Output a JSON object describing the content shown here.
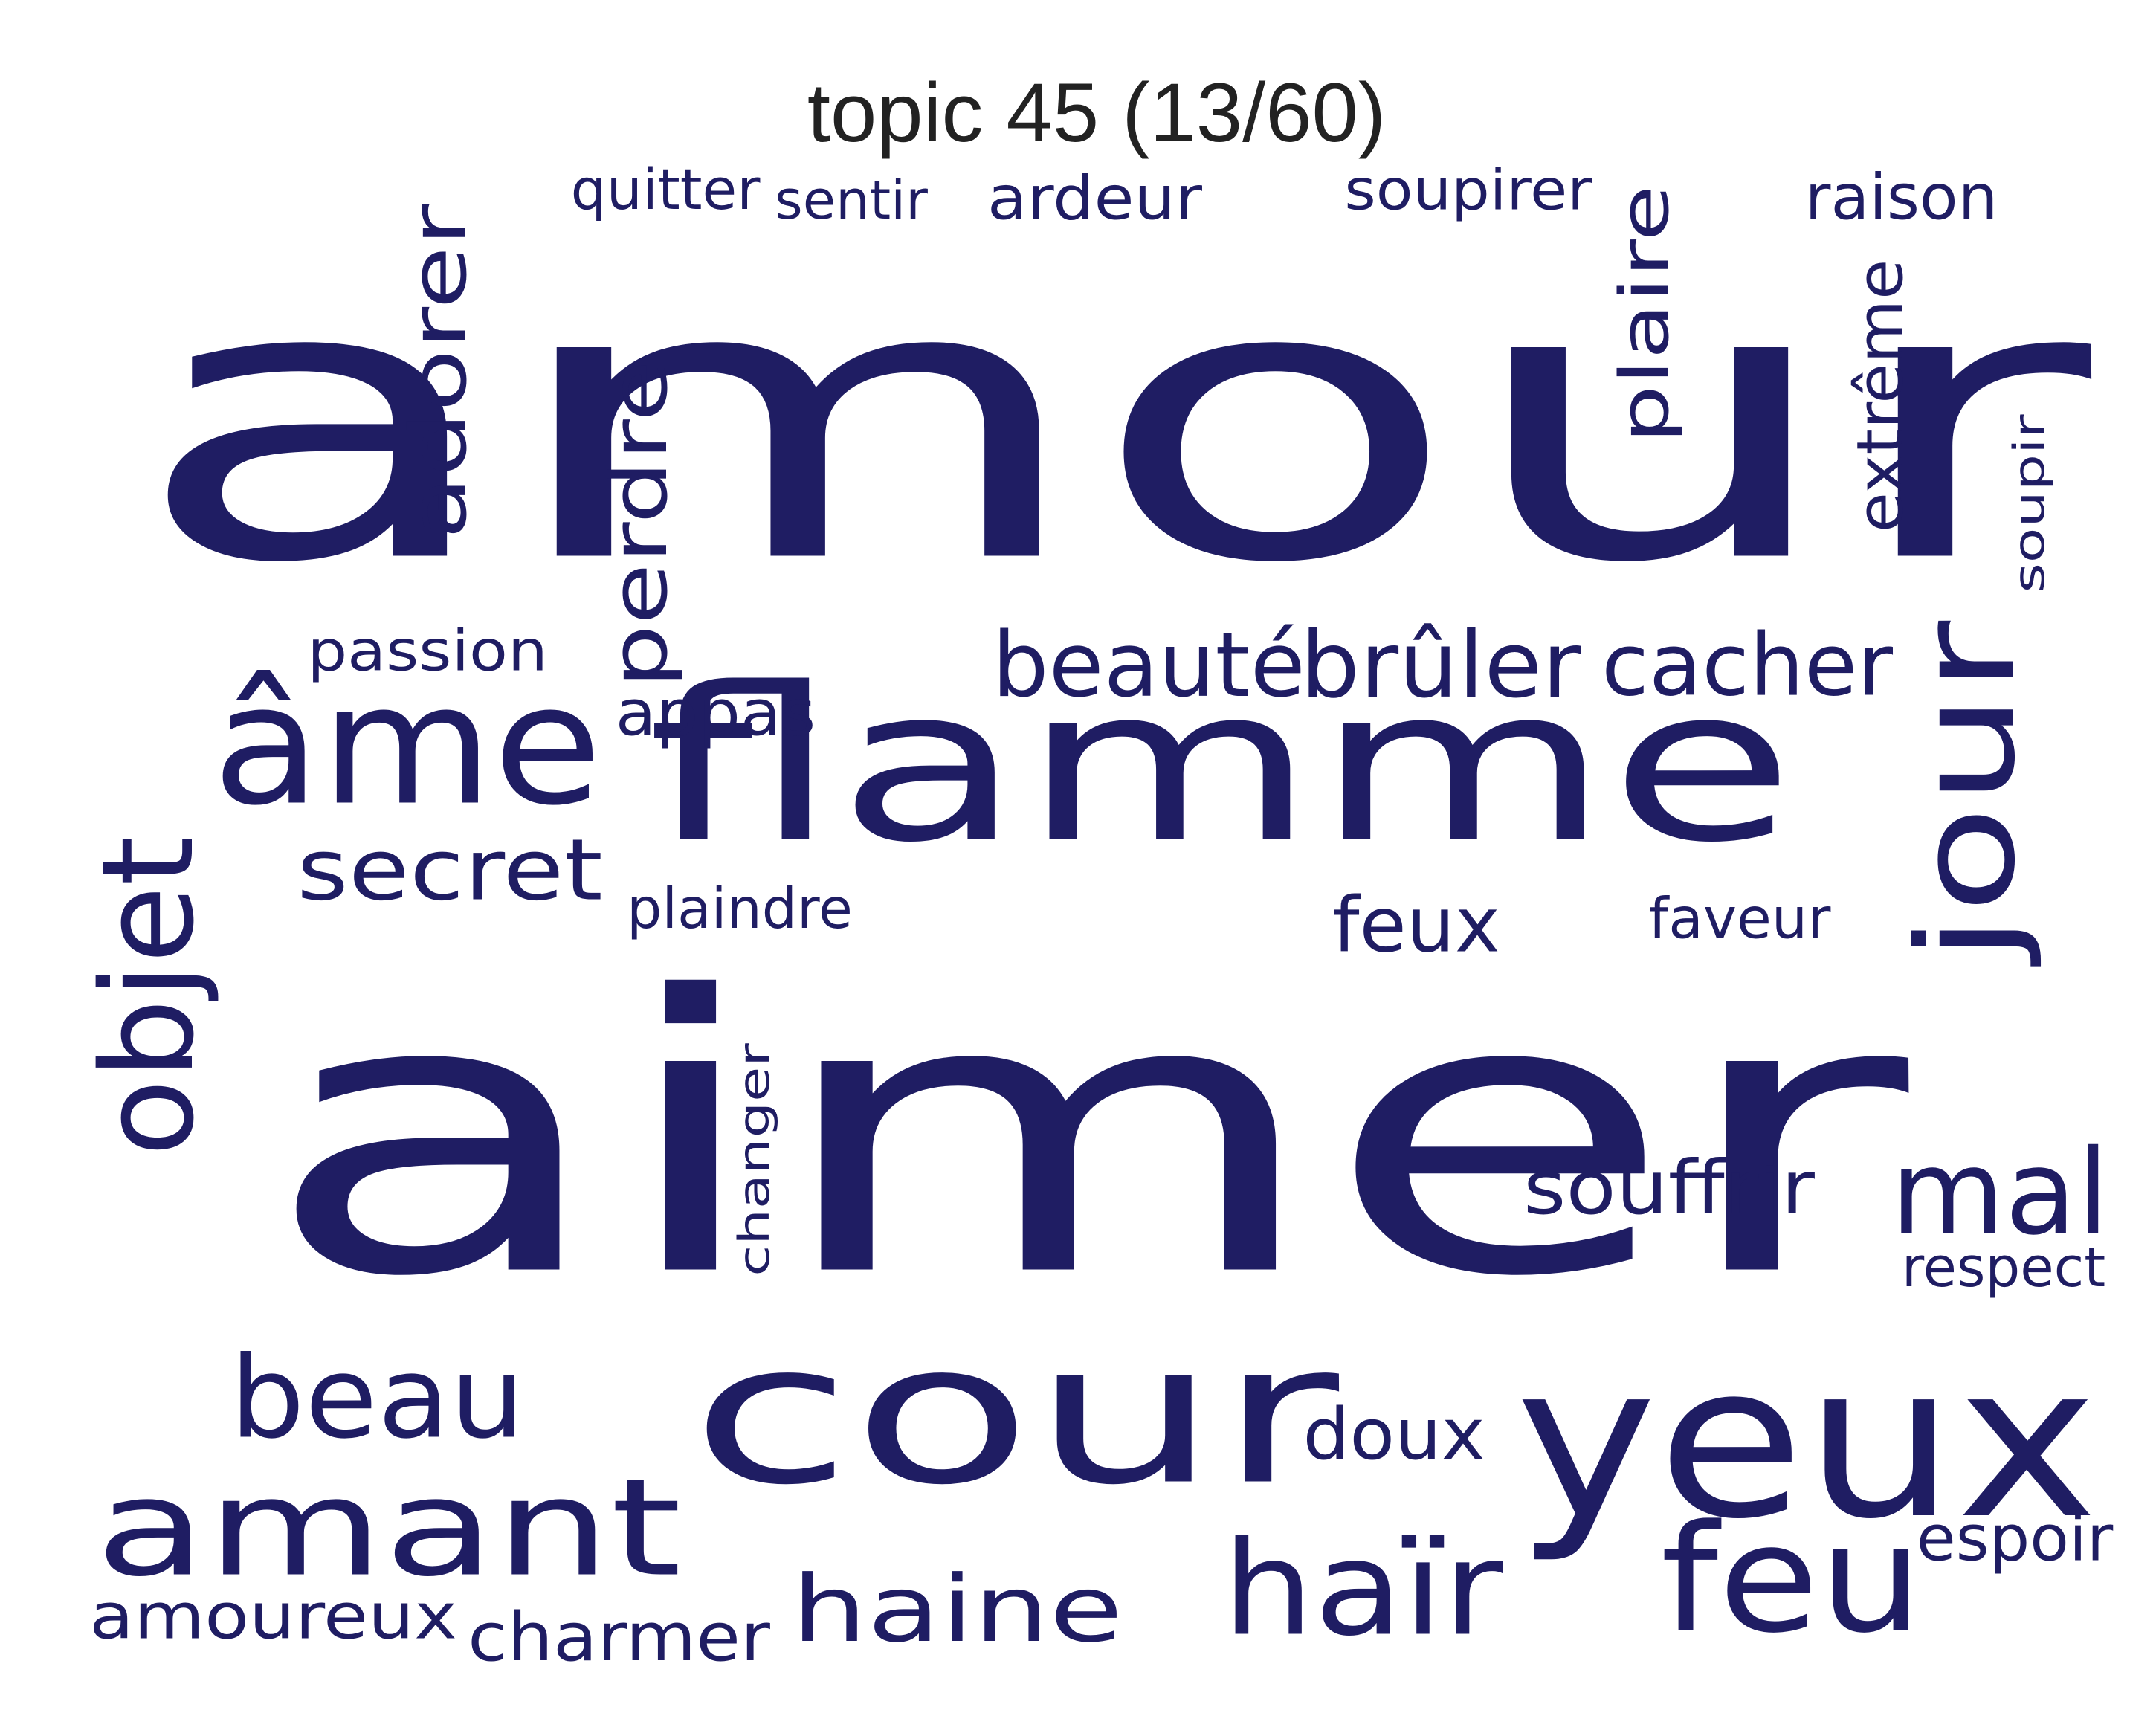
{
  "title": "topic 45 (13/60)",
  "word_color": "#1f1d63",
  "words": [
    {
      "text": "amour",
      "vertical": false
    },
    {
      "text": "aimer",
      "vertical": false
    },
    {
      "text": "flamme",
      "vertical": false
    },
    {
      "text": "cour",
      "vertical": false
    },
    {
      "text": "yeux",
      "vertical": false
    },
    {
      "text": "âme",
      "vertical": false
    },
    {
      "text": "amant",
      "vertical": false
    },
    {
      "text": "jour",
      "vertical": true
    },
    {
      "text": "feu",
      "vertical": false
    },
    {
      "text": "haïr",
      "vertical": false
    },
    {
      "text": "haine",
      "vertical": false
    },
    {
      "text": "beau",
      "vertical": false
    },
    {
      "text": "objet",
      "vertical": true
    },
    {
      "text": "perdre",
      "vertical": true
    },
    {
      "text": "adorer",
      "vertical": true
    },
    {
      "text": "secret",
      "vertical": false
    },
    {
      "text": "mal",
      "vertical": false
    },
    {
      "text": "plaire",
      "vertical": true
    },
    {
      "text": "beauté",
      "vertical": false
    },
    {
      "text": "brûler",
      "vertical": false
    },
    {
      "text": "cacher",
      "vertical": false
    },
    {
      "text": "souffrir",
      "vertical": false
    },
    {
      "text": "feux",
      "vertical": false
    },
    {
      "text": "doux",
      "vertical": false
    },
    {
      "text": "ardeur",
      "vertical": false
    },
    {
      "text": "raison",
      "vertical": false
    },
    {
      "text": "charmer",
      "vertical": false
    },
    {
      "text": "extrême",
      "vertical": true
    },
    {
      "text": "amoureux",
      "vertical": false
    },
    {
      "text": "espoir",
      "vertical": false
    },
    {
      "text": "passion",
      "vertical": false
    },
    {
      "text": "appas",
      "vertical": false
    },
    {
      "text": "sentir",
      "vertical": false
    },
    {
      "text": "soupirer",
      "vertical": false
    },
    {
      "text": "quitter",
      "vertical": false
    },
    {
      "text": "plaindre",
      "vertical": false
    },
    {
      "text": "changer",
      "vertical": true
    },
    {
      "text": "faveur",
      "vertical": false
    },
    {
      "text": "respect",
      "vertical": false
    },
    {
      "text": "soupir",
      "vertical": true
    }
  ]
}
